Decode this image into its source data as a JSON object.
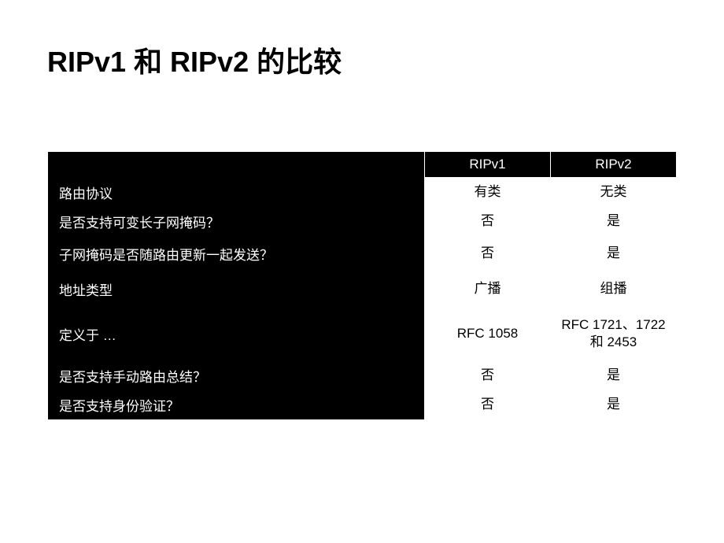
{
  "title": "RIPv1 和 RIPv2 的比较",
  "table": {
    "headers": {
      "col1": "RIPv1",
      "col2": "RIPv2"
    },
    "rows": [
      {
        "label": "路由协议",
        "v1": "有类",
        "v2": "无类"
      },
      {
        "label": "是否支持可变长子网掩码？",
        "v1": "否",
        "v2": "是"
      },
      {
        "label": "子网掩码是否随路由更新一起发送？",
        "v1": "否",
        "v2": "是"
      },
      {
        "label": "地址类型",
        "v1": "广播",
        "v2": "组播"
      },
      {
        "label": "定义于 …",
        "v1": "RFC 1058",
        "v2": "RFC 1721、1722 和 2453"
      },
      {
        "label": "是否支持手动路由总结？",
        "v1": "否",
        "v2": "是"
      },
      {
        "label": "是否支持身份验证？",
        "v1": "否",
        "v2": "是"
      }
    ]
  },
  "style": {
    "background": "#ffffff",
    "table_bg": "#000000",
    "cell_bg": "#ffffff",
    "text_dark": "#000000",
    "text_light": "#ffffff",
    "title_fontsize": 36,
    "cell_fontsize": 17
  }
}
